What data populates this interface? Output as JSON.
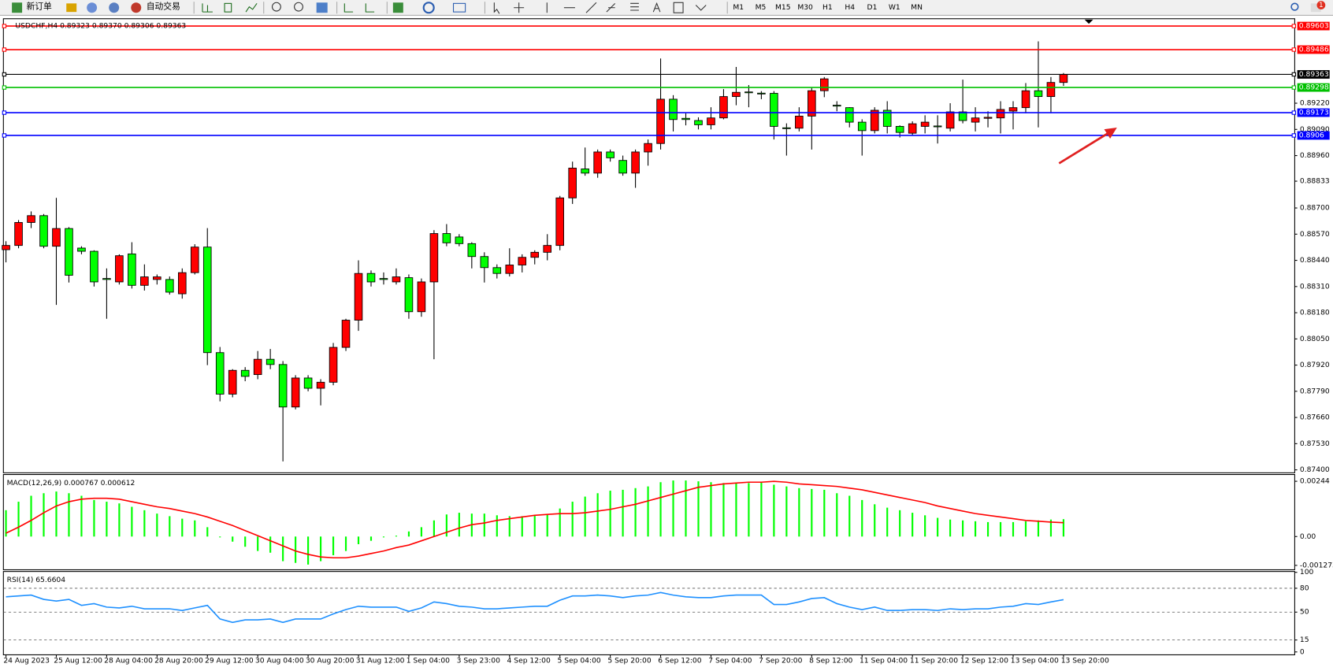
{
  "toolbar": {
    "buttons": [
      "新订单",
      "自动交易"
    ],
    "timeframes": [
      "M1",
      "M5",
      "M15",
      "M30",
      "H1",
      "H4",
      "D1",
      "W1",
      "MN"
    ],
    "badge": 1
  },
  "chart_data": [
    {
      "type": "candlestick",
      "title": "USDCHF,H4  0.89323 0.89370 0.89306 0.89363",
      "categories": [
        "24 Aug 2023",
        null,
        null,
        null,
        "25 Aug 12:00",
        null,
        null,
        null,
        "28 Aug 04:00",
        null,
        null,
        null,
        "28 Aug 20:00",
        null,
        null,
        null,
        "29 Aug 12:00",
        null,
        null,
        null,
        "30 Aug 04:00",
        null,
        null,
        null,
        "30 Aug 20:00",
        null,
        null,
        null,
        "31 Aug 12:00",
        null,
        null,
        null,
        "1 Sep 04:00",
        null,
        null,
        null,
        "3 Sep 23:00",
        null,
        null,
        null,
        "4 Sep 12:00",
        null,
        null,
        null,
        "5 Sep 04:00",
        null,
        null,
        null,
        "5 Sep 20:00",
        null,
        null,
        null,
        "6 Sep 12:00",
        null,
        null,
        null,
        "7 Sep 04:00",
        null,
        null,
        null,
        "7 Sep 20:00",
        null,
        null,
        null,
        "8 Sep 12:00",
        null,
        null,
        null,
        "11 Sep 04:00",
        null,
        null,
        null,
        "11 Sep 20:00",
        null,
        null,
        null,
        "12 Sep 12:00",
        null,
        null,
        null,
        "13 Sep 04:00",
        null,
        null,
        null,
        "13 Sep 20:00"
      ],
      "open": [
        0.88493,
        0.88514,
        0.88628,
        0.88662,
        0.8851,
        0.88598,
        0.88501,
        0.88485,
        0.8835,
        0.88333,
        0.88472,
        0.88316,
        0.88345,
        0.88345,
        0.88274,
        0.88379,
        0.88506,
        0.87982,
        0.87776,
        0.87894,
        0.87873,
        0.87949,
        0.87923,
        0.87712,
        0.87856,
        0.87805,
        0.87835,
        0.88008,
        0.88143,
        0.88375,
        0.8835,
        0.88333,
        0.88354,
        0.88185,
        0.88333,
        0.88573,
        0.88556,
        0.88523,
        0.88459,
        0.88404,
        0.88375,
        0.88417,
        0.88455,
        0.8848,
        0.88514,
        0.8875,
        0.88894,
        0.88873,
        0.88978,
        0.88936,
        0.88873,
        0.88978,
        0.8902,
        0.8924,
        0.89145,
        0.89134,
        0.89113,
        0.89147,
        0.89253,
        0.89276,
        0.8927,
        0.89269,
        0.89098,
        0.89096,
        0.89156,
        0.89282,
        0.8921,
        0.89198,
        0.89126,
        0.89084,
        0.89185,
        0.89105,
        0.89071,
        0.89105,
        0.89107,
        0.89096,
        0.89177,
        0.89126,
        0.89145,
        0.89147,
        0.89181,
        0.89198,
        0.89282,
        0.89253,
        0.89323
      ],
      "high": [
        0.88535,
        0.8864,
        0.88683,
        0.8867,
        0.8875,
        0.88605,
        0.8851,
        0.8849,
        0.884,
        0.8847,
        0.8853,
        0.8842,
        0.8837,
        0.8836,
        0.884,
        0.8852,
        0.886,
        0.8801,
        0.879,
        0.8791,
        0.8799,
        0.88,
        0.8794,
        0.8787,
        0.8787,
        0.8785,
        0.8803,
        0.8815,
        0.8844,
        0.8839,
        0.8838,
        0.884,
        0.8837,
        0.8835,
        0.8859,
        0.8862,
        0.8857,
        0.8853,
        0.8848,
        0.8842,
        0.885,
        0.8847,
        0.8849,
        0.8857,
        0.8876,
        0.8893,
        0.89,
        0.8899,
        0.8899,
        0.8896,
        0.8899,
        0.8904,
        0.89442,
        0.8926,
        0.8917,
        0.8915,
        0.892,
        0.8929,
        0.894,
        0.8931,
        0.8928,
        0.8928,
        0.8912,
        0.892,
        0.893,
        0.8935,
        0.8923,
        0.892,
        0.8914,
        0.892,
        0.8923,
        0.8911,
        0.8913,
        0.8916,
        0.8916,
        0.8922,
        0.89337,
        0.892,
        0.8918,
        0.8923,
        0.8923,
        0.8932,
        0.89527,
        0.8935,
        0.8937
      ],
      "low": [
        0.8843,
        0.885,
        0.886,
        0.885,
        0.88219,
        0.8833,
        0.8847,
        0.8831,
        0.8815,
        0.8832,
        0.883,
        0.8829,
        0.8832,
        0.8827,
        0.8825,
        0.8837,
        0.8792,
        0.8774,
        0.8776,
        0.8784,
        0.8785,
        0.879,
        0.87442,
        0.877,
        0.8779,
        0.8772,
        0.8782,
        0.8799,
        0.8809,
        0.8831,
        0.8832,
        0.8832,
        0.8815,
        0.8816,
        0.87949,
        0.8851,
        0.8851,
        0.884,
        0.8833,
        0.8835,
        0.8836,
        0.8838,
        0.8842,
        0.8844,
        0.8849,
        0.8872,
        0.8886,
        0.8885,
        0.8893,
        0.8886,
        0.888,
        0.8891,
        0.8899,
        0.8908,
        0.8911,
        0.8909,
        0.8909,
        0.8914,
        0.8921,
        0.892,
        0.8924,
        0.8904,
        0.8896,
        0.8908,
        0.8899,
        0.8925,
        0.8918,
        0.891,
        0.8896,
        0.8907,
        0.8907,
        0.8905,
        0.8906,
        0.8907,
        0.8902,
        0.8908,
        0.8912,
        0.8908,
        0.891,
        0.8907,
        0.8909,
        0.8917,
        0.891,
        0.8917,
        0.89306
      ],
      "close": [
        0.88514,
        0.88628,
        0.88662,
        0.8851,
        0.88598,
        0.88366,
        0.88485,
        0.88333,
        0.88345,
        0.88463,
        0.88316,
        0.88358,
        0.88358,
        0.88282,
        0.88379,
        0.88506,
        0.87982,
        0.87776,
        0.87894,
        0.87864,
        0.87949,
        0.87923,
        0.87712,
        0.87856,
        0.87805,
        0.87835,
        0.88008,
        0.88143,
        0.88375,
        0.88333,
        0.88345,
        0.88358,
        0.88185,
        0.88333,
        0.88573,
        0.88527,
        0.88523,
        0.88459,
        0.88404,
        0.88375,
        0.88417,
        0.88455,
        0.8848,
        0.88514,
        0.8875,
        0.88898,
        0.88873,
        0.88978,
        0.88949,
        0.88873,
        0.88978,
        0.8902,
        0.8924,
        0.89139,
        0.89139,
        0.89113,
        0.89147,
        0.89253,
        0.89274,
        0.89272,
        0.89268,
        0.89105,
        0.89096,
        0.89156,
        0.89282,
        0.89341,
        0.89206,
        0.89126,
        0.89084,
        0.89185,
        0.89105,
        0.89075,
        0.89118,
        0.89126,
        0.89103,
        0.89177,
        0.89134,
        0.89147,
        0.8915,
        0.89189,
        0.89198,
        0.89282,
        0.89253,
        0.89323,
        0.89363
      ],
      "up_color": "#ff0000",
      "down_color": "#00ff00",
      "levels": [
        {
          "value": 0.89603,
          "color": "#ff0000"
        },
        {
          "value": 0.89486,
          "color": "#ff0000"
        },
        {
          "value": 0.89363,
          "color": "#000000"
        },
        {
          "value": 0.89298,
          "color": "#00c000"
        },
        {
          "value": 0.89173,
          "color": "#0000ff"
        },
        {
          "value": 0.8906,
          "color": "#0000ff"
        }
      ],
      "ylim": [
        0.874,
        0.89633
      ],
      "yticks": [
        {
          "value": 0.874,
          "label": "0.87400"
        },
        {
          "value": 0.8753,
          "label": "0.87530"
        },
        {
          "value": 0.8766,
          "label": "0.87660"
        },
        {
          "value": 0.8779,
          "label": "0.87790"
        },
        {
          "value": 0.8792,
          "label": "0.87920"
        },
        {
          "value": 0.8805,
          "label": "0.88050"
        },
        {
          "value": 0.8818,
          "label": "0.88180"
        },
        {
          "value": 0.8831,
          "label": "0.88310"
        },
        {
          "value": 0.8844,
          "label": "0.88440"
        },
        {
          "value": 0.8857,
          "label": "0.88570"
        },
        {
          "value": 0.887,
          "label": "0.88700"
        },
        0.88833,
        {
          "value": 0.8896,
          "label": "0.88960"
        },
        {
          "value": 0.8909,
          "label": "0.89090"
        },
        {
          "value": 0.8922,
          "label": "0.89220"
        }
      ],
      "grid": false
    },
    {
      "type": "bar",
      "title": "MACD(12,26,9) 0.000767 0.000612",
      "series": [
        {
          "type": "bar",
          "color": "#00ff00",
          "values": [
            0.001163,
            0.001538,
            0.0018,
            0.001913,
            0.001988,
            0.001913,
            0.0018,
            0.001613,
            0.001538,
            0.001463,
            0.001313,
            0.001163,
            0.001013,
            0.0009,
            0.000788,
            0.000713,
            0.000413,
            -3.8e-05,
            -0.000225,
            -0.00045,
            -0.000638,
            -0.000713,
            -0.001088,
            -0.001163,
            -0.001238,
            -0.001088,
            -0.000825,
            -0.000638,
            -0.000338,
            -0.000188,
            -3.8e-05,
            3.8e-05,
            0.000225,
            0.000413,
            0.000713,
            0.000975,
            0.00105,
            0.001013,
            0.001013,
            0.000938,
            0.0009,
            0.0009,
            0.000938,
            0.000975,
            0.001238,
            0.001538,
            0.001763,
            0.001913,
            0.002025,
            0.002063,
            0.002138,
            0.002213,
            0.0024,
            0.002475,
            0.002475,
            0.002438,
            0.0024,
            0.002363,
            0.002363,
            0.002363,
            0.0024,
            0.002288,
            0.002213,
            0.002138,
            0.0021,
            0.002063,
            0.001913,
            0.0018,
            0.001613,
            0.001425,
            0.001275,
            0.001163,
            0.00105,
            0.000938,
            0.000825,
            0.00075,
            0.000713,
            0.000675,
            0.000638,
            0.000638,
            0.000638,
            0.000675,
            0.000713,
            0.00075,
            0.000767
          ]
        },
        {
          "type": "line",
          "color": "#ff0000",
          "values": [
            0.00015,
            0.000413,
            0.000713,
            0.00105,
            0.00135,
            0.001538,
            0.00165,
            0.001688,
            0.001688,
            0.00165,
            0.001538,
            0.001425,
            0.001313,
            0.001238,
            0.001125,
            0.001013,
            0.000863,
            0.000675,
            0.000488,
            0.000263,
            3.8e-05,
            -0.000188,
            -0.000413,
            -0.000638,
            -0.000788,
            -0.0009,
            -0.000938,
            -0.000938,
            -0.000863,
            -0.00075,
            -0.000638,
            -0.000488,
            -0.000375,
            -0.000188,
            0,
            0.000188,
            0.000375,
            0.000525,
            0.0006,
            0.000713,
            0.000788,
            0.000863,
            0.000938,
            0.000975,
            0.001013,
            0.001013,
            0.00105,
            0.001125,
            0.0012,
            0.001313,
            0.001425,
            0.001575,
            0.001725,
            0.001875,
            0.002025,
            0.002175,
            0.00225,
            0.002325,
            0.002363,
            0.0024,
            0.0024,
            0.002438,
            0.0024,
            0.002325,
            0.002288,
            0.00225,
            0.002213,
            0.002138,
            0.002063,
            0.00195,
            0.001838,
            0.001725,
            0.001613,
            0.0015,
            0.00135,
            0.001238,
            0.001125,
            0.001013,
            0.000938,
            0.000863,
            0.000788,
            0.000713,
            0.000675,
            0.000638,
            0.000612
          ]
        }
      ],
      "ylim": [
        -0.00143,
        0.0027
      ],
      "yticks": [
        -0.001273,
        {
          "value": 0,
          "label": "0.00"
        },
        0.00244
      ],
      "grid": false
    },
    {
      "type": "line",
      "title": "RSI(14) 65.6604",
      "series": [
        {
          "color": "#1e90ff",
          "values": [
            69.2,
            70.3,
            71.4,
            66.0,
            63.9,
            66.0,
            58.5,
            60.7,
            56.3,
            55.3,
            57.4,
            54.2,
            54.2,
            54.2,
            52.1,
            55.3,
            58.5,
            41.4,
            37.1,
            40.3,
            40.3,
            41.4,
            37.1,
            41.4,
            41.4,
            41.4,
            47.8,
            53.2,
            57.4,
            56.3,
            56.3,
            56.3,
            51.0,
            55.3,
            62.8,
            60.7,
            57.4,
            56.3,
            54.2,
            54.2,
            55.3,
            56.3,
            57.4,
            57.4,
            65.0,
            70.3,
            70.3,
            71.4,
            70.3,
            68.2,
            70.3,
            71.4,
            74.6,
            71.4,
            69.2,
            68.2,
            68.2,
            70.3,
            71.4,
            71.4,
            71.4,
            59.6,
            59.6,
            62.8,
            67.1,
            68.2,
            60.7,
            56.3,
            53.2,
            56.3,
            52.1,
            52.1,
            53.2,
            53.2,
            52.1,
            54.2,
            53.2,
            54.2,
            54.2,
            56.3,
            57.4,
            60.7,
            59.6,
            62.8,
            65.6604
          ]
        }
      ],
      "ylim": [
        0,
        100
      ],
      "yticks": [
        0,
        15,
        50,
        80,
        100
      ],
      "grid": true
    }
  ]
}
